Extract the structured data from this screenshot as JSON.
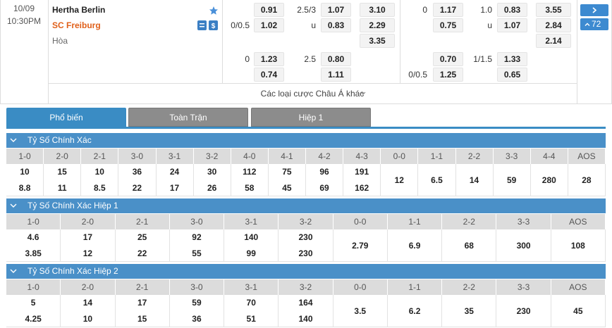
{
  "match": {
    "date": "10/09",
    "time": "10:30PM",
    "home": "Hertha Berlin",
    "away": "SC Freiburg",
    "draw": "Hòa",
    "odds_rows": [
      [
        null,
        "0.91",
        "2.5/3",
        "1.07",
        "3.10",
        "0",
        "1.17",
        "1.0",
        "0.83",
        "3.55"
      ],
      [
        "0/0.5",
        "1.02",
        "u",
        "0.83",
        "2.29",
        null,
        "0.75",
        "u",
        "1.07",
        "2.84"
      ],
      [
        null,
        null,
        null,
        null,
        "3.35",
        null,
        null,
        null,
        null,
        "2.14"
      ],
      [
        "0",
        "1.23",
        "2.5",
        "0.80",
        null,
        null,
        "0.70",
        "1/1.5",
        "1.33",
        null
      ],
      [
        null,
        "0.74",
        null,
        "1.11",
        null,
        "0/0.5",
        "1.25",
        null,
        "0.65",
        null
      ]
    ]
  },
  "nav": {
    "count": "72"
  },
  "more_link": "Các loại cược Châu Á khác",
  "tabs": [
    "Phổ biến",
    "Toàn Trận",
    "Hiệp 1"
  ],
  "sections": [
    {
      "title": "Tỷ Số Chính Xác",
      "headers": [
        "1-0",
        "2-0",
        "2-1",
        "3-0",
        "3-1",
        "3-2",
        "4-0",
        "4-1",
        "4-2",
        "4-3",
        "0-0",
        "1-1",
        "2-2",
        "3-3",
        "4-4",
        "AOS"
      ],
      "cells": [
        [
          "10",
          "8.8"
        ],
        [
          "15",
          "11"
        ],
        [
          "10",
          "8.5"
        ],
        [
          "36",
          "22"
        ],
        [
          "24",
          "17"
        ],
        [
          "30",
          "26"
        ],
        [
          "112",
          "58"
        ],
        [
          "75",
          "45"
        ],
        [
          "96",
          "69"
        ],
        [
          "191",
          "162"
        ],
        [
          "12"
        ],
        [
          "6.5"
        ],
        [
          "14"
        ],
        [
          "59"
        ],
        [
          "280"
        ],
        [
          "28"
        ]
      ]
    },
    {
      "title": "Tỷ Số Chính Xác Hiệp 1",
      "headers": [
        "1-0",
        "2-0",
        "2-1",
        "3-0",
        "3-1",
        "3-2",
        "0-0",
        "1-1",
        "2-2",
        "3-3",
        "AOS"
      ],
      "cells": [
        [
          "4.6",
          "3.85"
        ],
        [
          "17",
          "12"
        ],
        [
          "25",
          "22"
        ],
        [
          "92",
          "55"
        ],
        [
          "140",
          "99"
        ],
        [
          "230",
          "230"
        ],
        [
          "2.79"
        ],
        [
          "6.9"
        ],
        [
          "68"
        ],
        [
          "300"
        ],
        [
          "108"
        ]
      ]
    },
    {
      "title": "Tỷ Số Chính Xác Hiệp 2",
      "headers": [
        "1-0",
        "2-0",
        "2-1",
        "3-0",
        "3-1",
        "3-2",
        "0-0",
        "1-1",
        "2-2",
        "3-3",
        "AOS"
      ],
      "cells": [
        [
          "5",
          "4.25"
        ],
        [
          "14",
          "10"
        ],
        [
          "17",
          "15"
        ],
        [
          "59",
          "36"
        ],
        [
          "70",
          "51"
        ],
        [
          "164",
          "140"
        ],
        [
          "3.5"
        ],
        [
          "6.2"
        ],
        [
          "35"
        ],
        [
          "230"
        ],
        [
          "45"
        ]
      ]
    }
  ]
}
